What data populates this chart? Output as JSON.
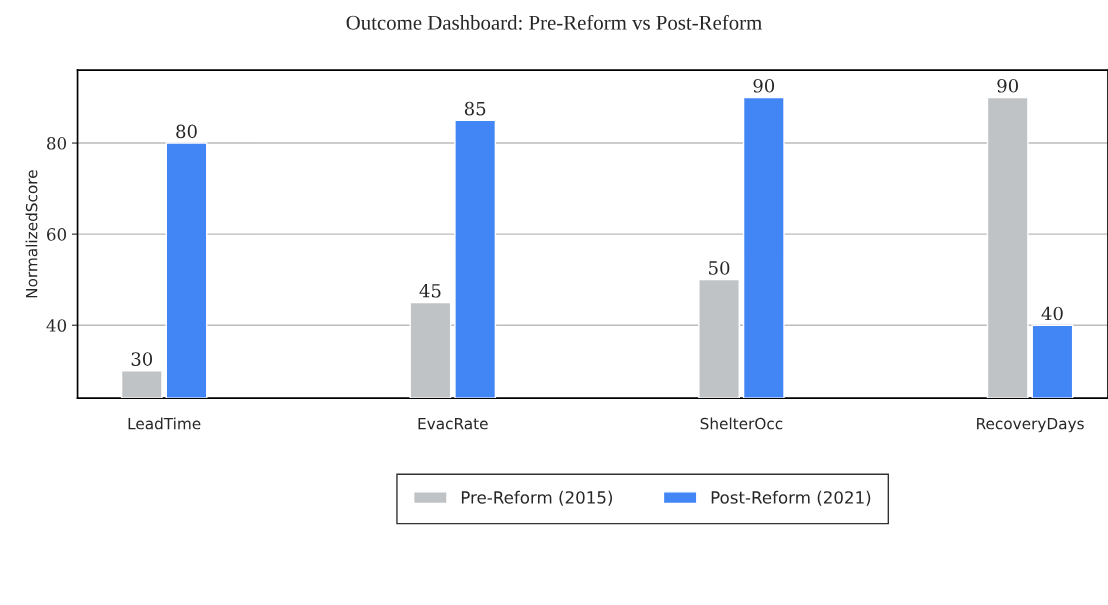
{
  "chart_data": {
    "type": "bar",
    "title": "Outcome Dashboard: Pre-Reform vs Post-Reform",
    "ylabel": "NormalizedScore",
    "categories": [
      "LeadTime",
      "EvacRate",
      "ShelterOcc",
      "RecoveryDays"
    ],
    "series": [
      {
        "name": "Pre-Reform (2015)",
        "color": "#c0c3c6",
        "values": [
          30,
          45,
          50,
          90
        ]
      },
      {
        "name": "Post-Reform (2021)",
        "color": "#4285f4",
        "values": [
          80,
          85,
          90,
          40
        ]
      }
    ],
    "ylim": [
      24,
      96
    ],
    "yticks": [
      40,
      60,
      80
    ],
    "grid": "y",
    "legend": "bottom",
    "data_labels": true
  }
}
